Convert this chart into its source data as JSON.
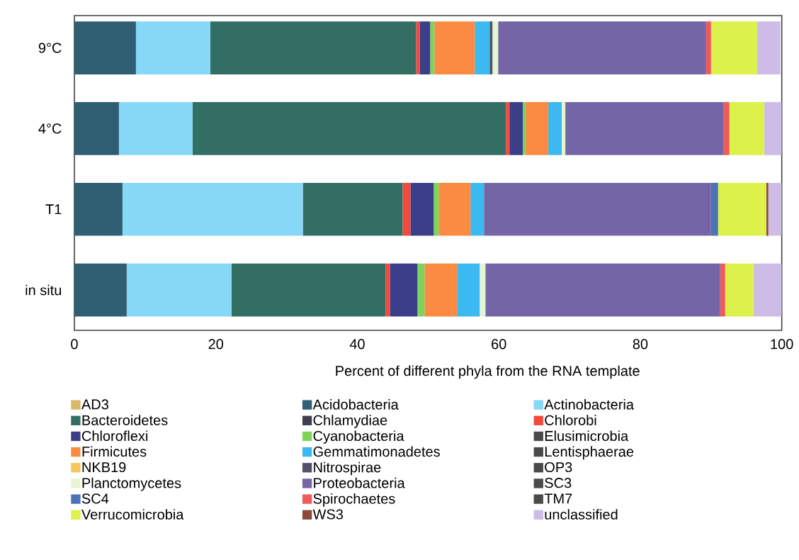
{
  "chart_data": {
    "type": "bar",
    "orientation": "horizontal",
    "stacked": true,
    "categories": [
      "9°C",
      "4°C",
      "T1",
      "in situ"
    ],
    "xlabel": "Percent of different phyla from the RNA template",
    "xlim": [
      0,
      100
    ],
    "xticks": [
      0,
      20,
      40,
      60,
      80,
      100
    ],
    "grid": false,
    "legend": "bottom",
    "series": [
      {
        "name": "AD3",
        "color": "#d9b86a",
        "values": [
          null,
          0,
          0,
          0
        ]
      },
      {
        "name": "Acidobacteria",
        "color": "#2f5f73",
        "values": [
          8.7,
          6.3,
          6.8,
          7.4
        ]
      },
      {
        "name": "Actinobacteria",
        "color": "#87d7f7",
        "values": [
          10.5,
          10.4,
          25.5,
          14.8
        ]
      },
      {
        "name": "Bacteroidetes",
        "color": "#336e64",
        "values": [
          29.1,
          44.3,
          14.1,
          21.8
        ]
      },
      {
        "name": "Chlamydiae",
        "color": "#3f3f4f",
        "values": [
          0,
          0,
          0,
          0
        ]
      },
      {
        "name": "Chlorobi",
        "color": "#f24a3c",
        "values": [
          0.5,
          0.5,
          1.1,
          0.6
        ]
      },
      {
        "name": "Chloroflexi",
        "color": "#3b3f8a",
        "values": [
          1.5,
          1.9,
          3.3,
          3.9
        ]
      },
      {
        "name": "Cyanobacteria",
        "color": "#7ed35a",
        "values": [
          0.6,
          0.4,
          0.7,
          1.0
        ]
      },
      {
        "name": "Elusimicrobia",
        "color": "#4a4a4a",
        "values": [
          0,
          0,
          0,
          0
        ]
      },
      {
        "name": "Firmicutes",
        "color": "#fb8a42",
        "values": [
          5.7,
          3.2,
          4.5,
          4.6
        ]
      },
      {
        "name": "Gemmatimonadetes",
        "color": "#3bb9f0",
        "values": [
          2.1,
          1.9,
          1.9,
          3.2
        ]
      },
      {
        "name": "Lentisphaerae",
        "color": "#4a4a4a",
        "values": [
          0,
          0,
          0,
          0
        ]
      },
      {
        "name": "NKB19",
        "color": "#f5c75a",
        "values": [
          0,
          0,
          0,
          0
        ]
      },
      {
        "name": "Nitrospirae",
        "color": "#55506a",
        "values": [
          0.4,
          0,
          0,
          0
        ]
      },
      {
        "name": "OP3",
        "color": "#4a4a4a",
        "values": [
          0,
          0,
          0,
          0
        ]
      },
      {
        "name": "Planctomycetes",
        "color": "#e6f5d0",
        "values": [
          0.8,
          0.5,
          0,
          0.8
        ]
      },
      {
        "name": "Proteobacteria",
        "color": "#7466a6",
        "values": [
          29.4,
          22.4,
          32.1,
          33.2
        ]
      },
      {
        "name": "SC3",
        "color": "#4a4a4a",
        "values": [
          0,
          0,
          0,
          0
        ]
      },
      {
        "name": "SC4",
        "color": "#4a74b8",
        "values": [
          0,
          0,
          1.0,
          0
        ]
      },
      {
        "name": "Spirochaetes",
        "color": "#f05a5a",
        "values": [
          0.7,
          0.8,
          0,
          0.7
        ]
      },
      {
        "name": "TM7",
        "color": "#4a4a4a",
        "values": [
          0,
          0,
          0,
          0
        ]
      },
      {
        "name": "Verrucomicrobia",
        "color": "#dcf24a",
        "values": [
          6.5,
          4.9,
          6.8,
          4.0
        ]
      },
      {
        "name": "WS3",
        "color": "#8a4a3a",
        "values": [
          0,
          0,
          0.3,
          0
        ]
      },
      {
        "name": "unclassified",
        "color": "#cdbde6",
        "values": [
          3.3,
          2.5,
          1.9,
          4.0
        ]
      }
    ]
  }
}
